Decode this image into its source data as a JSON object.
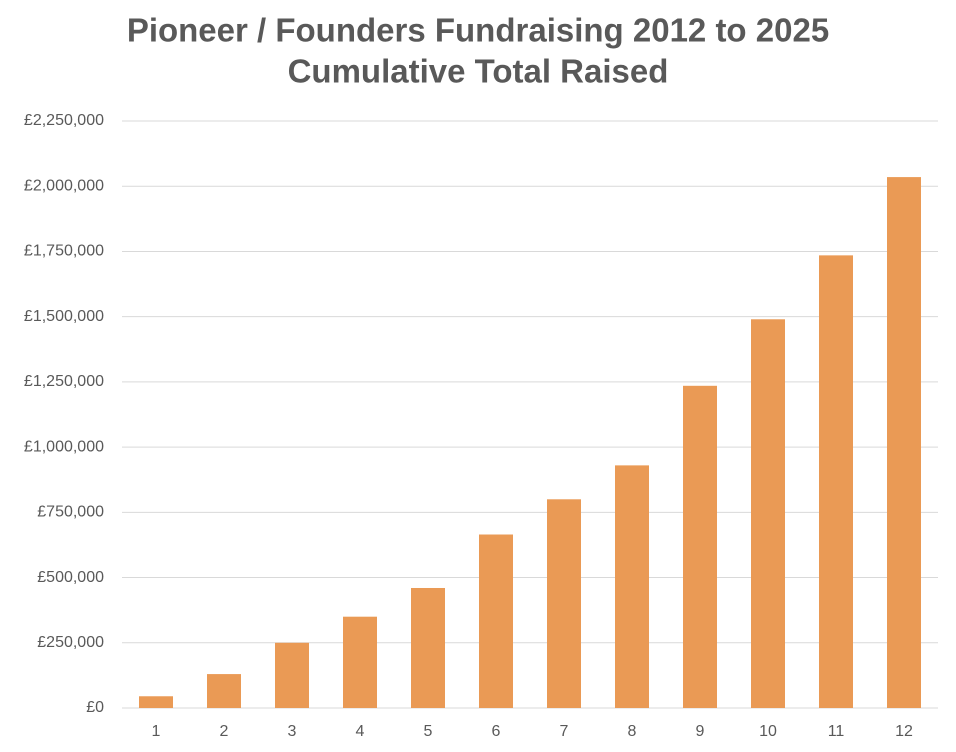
{
  "chart_data": {
    "type": "bar",
    "title": [
      "Pioneer / Founders Fundraising 2012 to 2025",
      "Cumulative Total Raised"
    ],
    "categories": [
      "1",
      "2",
      "3",
      "4",
      "5",
      "6",
      "7",
      "8",
      "9",
      "10",
      "11",
      "12"
    ],
    "values": [
      45000,
      130000,
      250000,
      350000,
      460000,
      665000,
      800000,
      930000,
      1235000,
      1490000,
      1735000,
      2035000
    ],
    "color": "#ea9a55",
    "ylim": [
      0,
      2250000
    ],
    "yticks": [
      {
        "value": 0,
        "label": "£0"
      },
      {
        "value": 250000,
        "label": "£250,000"
      },
      {
        "value": 500000,
        "label": "£500,000"
      },
      {
        "value": 750000,
        "label": "£750,000"
      },
      {
        "value": 1000000,
        "label": "£1,000,000"
      },
      {
        "value": 1250000,
        "label": "£1,250,000"
      },
      {
        "value": 1500000,
        "label": "£1,500,000"
      },
      {
        "value": 1750000,
        "label": "£1,750,000"
      },
      {
        "value": 2000000,
        "label": "£2,000,000"
      },
      {
        "value": 2250000,
        "label": "£2,250,000"
      }
    ],
    "grid": true
  }
}
